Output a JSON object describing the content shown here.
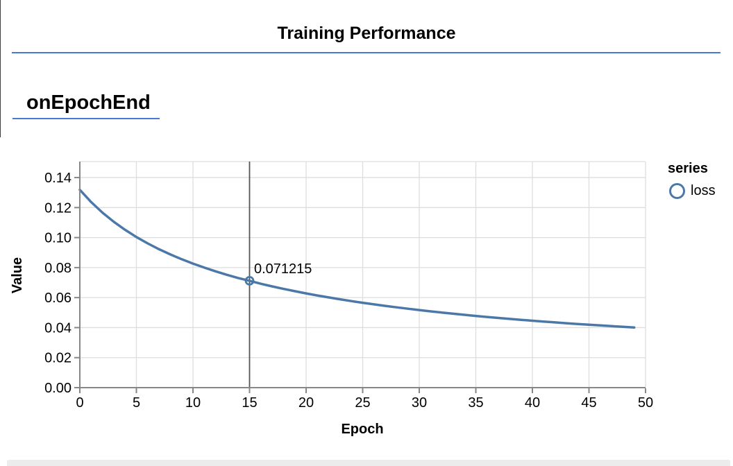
{
  "page": {
    "title": "Training Performance",
    "section_title": "onEpochEnd",
    "accent_color": "#4679d2"
  },
  "legend": {
    "title": "series",
    "items": [
      {
        "label": "loss",
        "color": "#4c78a8",
        "symbol": "open-circle"
      }
    ]
  },
  "colors": {
    "line": "#4c78a8",
    "grid": "#dddddd",
    "axis": "#878787",
    "rule": "#555555",
    "view_border": "#dddddd",
    "bottom_strip": "#ececec"
  },
  "chart_data": {
    "type": "line",
    "title": "onEpochEnd",
    "xlabel": "Epoch",
    "ylabel": "Value",
    "xlim": [
      0,
      50
    ],
    "ylim": [
      0,
      0.15
    ],
    "grid": true,
    "legend_position": "right",
    "x_ticks": [
      0,
      5,
      10,
      15,
      20,
      25,
      30,
      35,
      40,
      45,
      50
    ],
    "y_ticks": [
      "0.00",
      "0.02",
      "0.04",
      "0.06",
      "0.08",
      "0.10",
      "0.12",
      "0.14"
    ],
    "series": [
      {
        "name": "loss",
        "color": "#4c78a8",
        "x": [
          0,
          1,
          2,
          3,
          4,
          5,
          6,
          7,
          8,
          9,
          10,
          11,
          12,
          13,
          14,
          15,
          16,
          17,
          18,
          19,
          20,
          21,
          22,
          23,
          24,
          25,
          26,
          27,
          28,
          29,
          30,
          31,
          32,
          33,
          34,
          35,
          36,
          37,
          38,
          39,
          40,
          41,
          42,
          43,
          44,
          45,
          46,
          47,
          48,
          49
        ],
        "values": [
          0.13182,
          0.12367,
          0.11664,
          0.11053,
          0.10516,
          0.10039,
          0.0961,
          0.09225,
          0.08877,
          0.08558,
          0.08266,
          0.07998,
          0.0775,
          0.0752,
          0.07306,
          0.071215,
          0.06921,
          0.06746,
          0.06582,
          0.06427,
          0.06281,
          0.06142,
          0.06011,
          0.05886,
          0.05768,
          0.05657,
          0.05549,
          0.05447,
          0.05351,
          0.05258,
          0.05169,
          0.05084,
          0.05003,
          0.04925,
          0.04851,
          0.04779,
          0.0471,
          0.04644,
          0.0458,
          0.04519,
          0.04459,
          0.04402,
          0.04347,
          0.04294,
          0.04242,
          0.04192,
          0.04144,
          0.04097,
          0.04051,
          0.04007
        ]
      }
    ],
    "highlighted_point": {
      "x": 15,
      "y": 0.071215,
      "label": "0.071215"
    }
  }
}
